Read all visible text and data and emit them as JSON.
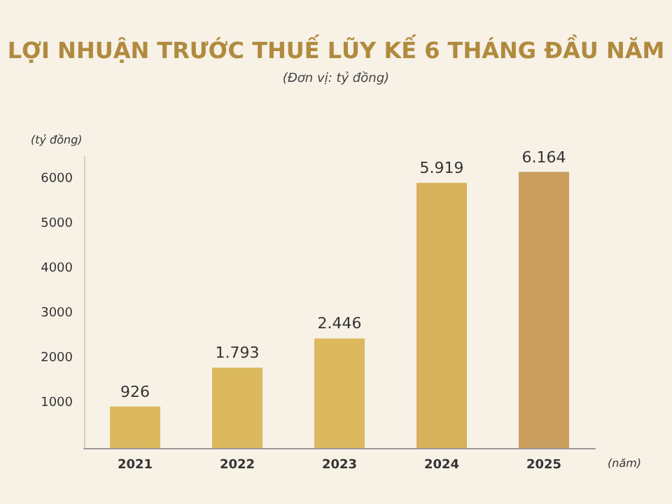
{
  "chart_data": {
    "type": "bar",
    "title": "LỢI NHUẬN TRƯỚC THUẾ LŨY KẾ 6 THÁNG ĐẦU NĂM",
    "subtitle": "(Đơn vị: tỷ đồng)",
    "ylabel": "(tỷ đồng)",
    "xlabel": "(năm)",
    "categories": [
      "2021",
      "2022",
      "2023",
      "2024",
      "2025"
    ],
    "values": [
      926,
      1793,
      2446,
      5919,
      6164
    ],
    "value_labels": [
      "926",
      "1.793",
      "2.446",
      "5.919",
      "6.164"
    ],
    "colors": [
      "#dcb95e",
      "#dcb95e",
      "#dcb95e",
      "#d8b25a",
      "#c99e5e"
    ],
    "ylim": [
      0,
      6500
    ],
    "yticks": [
      1000,
      2000,
      3000,
      4000,
      5000,
      6000
    ],
    "grid": false
  }
}
